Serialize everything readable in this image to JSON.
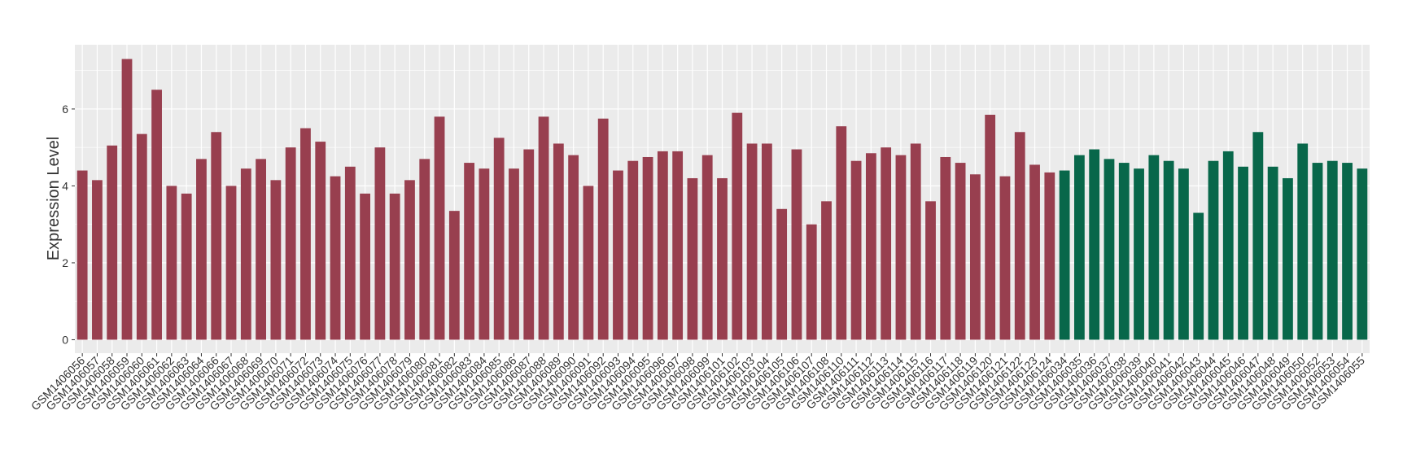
{
  "chart_data": {
    "type": "bar",
    "y_label": "Expression Level",
    "categories": [
      "GSM1406056",
      "GSM1406057",
      "GSM1406058",
      "GSM1406059",
      "GSM1406060",
      "GSM1406061",
      "GSM1406062",
      "GSM1406063",
      "GSM1406064",
      "GSM1406066",
      "GSM1406067",
      "GSM1406068",
      "GSM1406069",
      "GSM1406070",
      "GSM1406071",
      "GSM1406072",
      "GSM1406073",
      "GSM1406074",
      "GSM1406075",
      "GSM1406076",
      "GSM1406077",
      "GSM1406078",
      "GSM1406079",
      "GSM1406080",
      "GSM1406081",
      "GSM1406082",
      "GSM1406083",
      "GSM1406084",
      "GSM1406085",
      "GSM1406086",
      "GSM1406087",
      "GSM1406088",
      "GSM1406089",
      "GSM1406090",
      "GSM1406091",
      "GSM1406092",
      "GSM1406093",
      "GSM1406094",
      "GSM1406095",
      "GSM1406096",
      "GSM1406097",
      "GSM1406098",
      "GSM1406099",
      "GSM1406101",
      "GSM1406102",
      "GSM1406103",
      "GSM1406104",
      "GSM1406105",
      "GSM1406106",
      "GSM1406107",
      "GSM1406108",
      "GSM1406110",
      "GSM1406111",
      "GSM1406112",
      "GSM1406113",
      "GSM1406114",
      "GSM1406115",
      "GSM1406116",
      "GSM1406117",
      "GSM1406118",
      "GSM1406119",
      "GSM1406120",
      "GSM1406121",
      "GSM1406122",
      "GSM1406123",
      "GSM1406124",
      "GSM1406034",
      "GSM1406035",
      "GSM1406036",
      "GSM1406037",
      "GSM1406038",
      "GSM1406039",
      "GSM1406040",
      "GSM1406041",
      "GSM1406042",
      "GSM1406043",
      "GSM1406044",
      "GSM1406045",
      "GSM1406046",
      "GSM1406047",
      "GSM1406048",
      "GSM1406049",
      "GSM1406050",
      "GSM1406052",
      "GSM1406053",
      "GSM1406054",
      "GSM1406055"
    ],
    "values": [
      4.4,
      4.15,
      5.05,
      7.3,
      5.35,
      6.5,
      4.0,
      3.8,
      4.7,
      5.4,
      4.0,
      4.45,
      4.7,
      4.15,
      5.0,
      5.5,
      5.15,
      4.25,
      4.5,
      3.8,
      5.0,
      3.8,
      4.15,
      4.7,
      5.8,
      3.35,
      4.6,
      4.45,
      5.25,
      4.45,
      4.95,
      5.8,
      5.1,
      4.8,
      4.0,
      5.75,
      4.4,
      4.65,
      4.75,
      4.9,
      4.9,
      4.2,
      4.8,
      4.2,
      5.9,
      5.1,
      5.1,
      3.4,
      4.95,
      3.0,
      3.6,
      5.55,
      4.65,
      4.85,
      5.0,
      4.8,
      5.1,
      3.6,
      4.75,
      4.6,
      4.3,
      5.85,
      4.25,
      5.4,
      4.55,
      4.35,
      4.4,
      4.8,
      4.95,
      4.7,
      4.6,
      4.45,
      4.8,
      4.65,
      4.45,
      3.3,
      4.65,
      4.9,
      4.5,
      5.4,
      4.5,
      4.2,
      5.1,
      4.6,
      4.65,
      4.6,
      4.45
    ],
    "colors": [
      "#983f4f",
      "#983f4f",
      "#983f4f",
      "#983f4f",
      "#983f4f",
      "#983f4f",
      "#983f4f",
      "#983f4f",
      "#983f4f",
      "#983f4f",
      "#983f4f",
      "#983f4f",
      "#983f4f",
      "#983f4f",
      "#983f4f",
      "#983f4f",
      "#983f4f",
      "#983f4f",
      "#983f4f",
      "#983f4f",
      "#983f4f",
      "#983f4f",
      "#983f4f",
      "#983f4f",
      "#983f4f",
      "#983f4f",
      "#983f4f",
      "#983f4f",
      "#983f4f",
      "#983f4f",
      "#983f4f",
      "#983f4f",
      "#983f4f",
      "#983f4f",
      "#983f4f",
      "#983f4f",
      "#983f4f",
      "#983f4f",
      "#983f4f",
      "#983f4f",
      "#983f4f",
      "#983f4f",
      "#983f4f",
      "#983f4f",
      "#983f4f",
      "#983f4f",
      "#983f4f",
      "#983f4f",
      "#983f4f",
      "#983f4f",
      "#983f4f",
      "#983f4f",
      "#983f4f",
      "#983f4f",
      "#983f4f",
      "#983f4f",
      "#983f4f",
      "#983f4f",
      "#983f4f",
      "#983f4f",
      "#983f4f",
      "#983f4f",
      "#983f4f",
      "#983f4f",
      "#983f4f",
      "#983f4f",
      "#08674a",
      "#08674a",
      "#08674a",
      "#08674a",
      "#08674a",
      "#08674a",
      "#08674a",
      "#08674a",
      "#08674a",
      "#08674a",
      "#08674a",
      "#08674a",
      "#08674a",
      "#08674a",
      "#08674a",
      "#08674a",
      "#08674a",
      "#08674a",
      "#08674a",
      "#08674a",
      "#08674a"
    ],
    "ylim": [
      -0.35,
      7.67
    ],
    "yticks": [
      0,
      2,
      4,
      6
    ],
    "grid": true
  }
}
